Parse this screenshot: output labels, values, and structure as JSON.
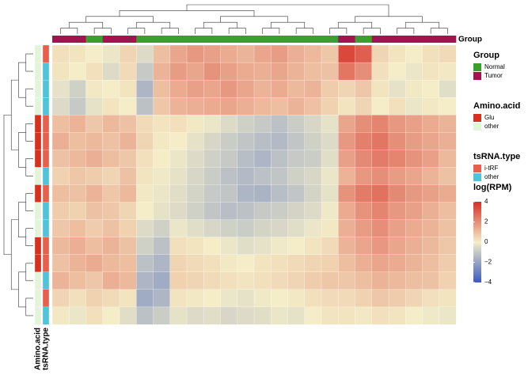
{
  "chart_data": {
    "type": "heatmap",
    "values": [
      [
        0.3,
        0.2,
        0,
        -0.2,
        0.5,
        -0.5,
        1,
        1.5,
        1.8,
        1.6,
        1.4,
        1.2,
        1.5,
        1.7,
        1.3,
        1.1,
        0.8,
        3.5,
        3,
        0.5,
        0.2,
        0,
        0.3,
        0.4
      ],
      [
        0.2,
        0,
        0.3,
        -0.5,
        0.4,
        -1,
        1.2,
        1.7,
        1.5,
        1.9,
        1.6,
        1.4,
        1.3,
        1.5,
        1.2,
        1,
        0.9,
        2.5,
        2,
        0.3,
        0,
        -0.2,
        0.2,
        0.1
      ],
      [
        -0.3,
        -0.8,
        0.1,
        0,
        0.2,
        -1.5,
        1,
        1.4,
        1.6,
        1.5,
        1.8,
        1.5,
        1.2,
        1.4,
        1.1,
        1.2,
        0.7,
        0.5,
        0.8,
        0.2,
        -0.3,
        0.1,
        0,
        -0.4
      ],
      [
        -0.5,
        -1,
        -0.3,
        0.2,
        0,
        -1.2,
        0.8,
        1.2,
        1.3,
        1.4,
        1.5,
        1.3,
        1.1,
        1,
        1.2,
        0.9,
        0.6,
        0.2,
        0.5,
        0,
        0.3,
        -0.2,
        0.1,
        0
      ],
      [
        1,
        1.2,
        0.8,
        1.1,
        0.9,
        0.4,
        0.2,
        0.3,
        0.1,
        -0.2,
        -0.5,
        -0.8,
        -1,
        -1.2,
        -0.9,
        -0.6,
        -0.3,
        1.5,
        2,
        2.2,
        1.8,
        1.6,
        1.4,
        1.2
      ],
      [
        1.3,
        1,
        1.1,
        0.9,
        1.2,
        0.5,
        0.1,
        0,
        -0.3,
        -0.6,
        -0.9,
        -1.1,
        -1.3,
        -1.4,
        -1.1,
        -0.8,
        -0.5,
        1.8,
        2.3,
        2.5,
        2,
        1.7,
        1.5,
        1.3
      ],
      [
        0.9,
        1.1,
        1.3,
        1,
        0.8,
        0.3,
        0,
        -0.2,
        -0.5,
        -0.8,
        -1,
        -1.3,
        -1.5,
        -1.2,
        -1,
        -0.9,
        -0.4,
        1.6,
        2.1,
        2.4,
        2.2,
        1.9,
        1.6,
        1.1
      ],
      [
        0.6,
        0.8,
        0.7,
        0.5,
        0.9,
        0.2,
        -0.1,
        -0.3,
        -0.6,
        -0.9,
        -1.2,
        -1.4,
        -1.2,
        -1.1,
        -0.8,
        -0.6,
        -0.2,
        1.2,
        1.8,
        2,
        1.7,
        1.5,
        1.2,
        0.9
      ],
      [
        1,
        0.9,
        1.2,
        0.8,
        1.1,
        0.1,
        -0.2,
        -0.4,
        -0.7,
        -1,
        -1.1,
        -1.5,
        -1.6,
        -1.3,
        -1.1,
        -0.7,
        -0.3,
        1.9,
        2.4,
        2.6,
        2.1,
        1.8,
        1.6,
        1.4
      ],
      [
        0.7,
        0.6,
        0.9,
        0.8,
        0.5,
        0,
        -0.3,
        -0.5,
        -0.8,
        -1.1,
        -1.3,
        -1.2,
        -1,
        -0.9,
        -0.7,
        -0.5,
        -0.1,
        1.4,
        1.9,
        2.2,
        1.8,
        1.6,
        1.3,
        1
      ],
      [
        0.8,
        1,
        0.7,
        0.9,
        0.6,
        -0.5,
        -0.8,
        -0.2,
        -0.4,
        -0.6,
        -0.8,
        -0.9,
        -0.7,
        -0.6,
        -0.4,
        -0.2,
        0.1,
        1.3,
        1.7,
        2,
        1.6,
        1.4,
        1.2,
        0.9
      ],
      [
        1.1,
        1.3,
        1,
        1.2,
        0.9,
        -0.8,
        -1.2,
        0.3,
        0.2,
        0,
        -0.2,
        -0.4,
        -0.3,
        -0.1,
        0,
        0.2,
        0.4,
        1.2,
        1.5,
        1.8,
        1.5,
        1.3,
        1.1,
        0.8
      ],
      [
        0.9,
        1.2,
        1.4,
        1.1,
        1,
        -1.2,
        -1.5,
        0.5,
        0.4,
        0.3,
        0.1,
        0,
        0.2,
        0.3,
        0.4,
        0.5,
        0.6,
        1,
        1.3,
        1.5,
        1.4,
        1.2,
        1,
        0.7
      ],
      [
        1.2,
        1,
        0.8,
        1.3,
        1.1,
        -1.5,
        -1.8,
        0.6,
        0.5,
        0.4,
        0.3,
        0.2,
        0.3,
        0.4,
        0.5,
        0.7,
        0.8,
        0.8,
        1,
        1.2,
        1.1,
        1,
        0.9,
        0.6
      ],
      [
        0.5,
        0.3,
        0.6,
        0.4,
        0.2,
        -1.8,
        -1.5,
        0.2,
        0.1,
        0,
        -0.2,
        -0.3,
        -0.1,
        0,
        0.1,
        0.3,
        0.4,
        0.4,
        0.6,
        0.8,
        0.7,
        0.5,
        0.3,
        0.2
      ],
      [
        0.1,
        -0.2,
        0.3,
        0,
        -0.4,
        -1.2,
        -0.9,
        -0.3,
        -0.5,
        -0.4,
        -0.6,
        -0.5,
        -0.4,
        -0.2,
        -0.3,
        0,
        0.2,
        0.2,
        0.1,
        0.3,
        0.2,
        0,
        -0.1,
        -0.2
      ]
    ],
    "column_annotation": {
      "name": "Group",
      "values": [
        "Tumor",
        "Tumor",
        "Normal",
        "Tumor",
        "Tumor",
        "Normal",
        "Normal",
        "Normal",
        "Normal",
        "Normal",
        "Normal",
        "Normal",
        "Normal",
        "Normal",
        "Normal",
        "Normal",
        "Normal",
        "Tumor",
        "Normal",
        "Tumor",
        "Tumor",
        "Tumor",
        "Tumor",
        "Tumor"
      ]
    },
    "row_annotations": [
      {
        "name": "Amino.acid",
        "values": [
          "other",
          "other",
          "other",
          "other",
          "Glu",
          "Glu",
          "Glu",
          "other",
          "Glu",
          "other",
          "other",
          "Glu",
          "Glu",
          "other",
          "other",
          "other"
        ]
      },
      {
        "name": "tsRNA.type",
        "values": [
          "i-tRF",
          "other",
          "other",
          "other",
          "i-tRF",
          "i-tRF",
          "i-tRF",
          "other",
          "i-tRF",
          "other",
          "other",
          "i-tRF",
          "i-tRF",
          "other",
          "i-tRF",
          "other"
        ]
      }
    ],
    "legends": [
      {
        "title": "Group",
        "items": [
          {
            "label": "Normal",
            "color": "#3aa02c"
          },
          {
            "label": "Tumor",
            "color": "#a3144f"
          }
        ]
      },
      {
        "title": "Amino.acid",
        "items": [
          {
            "label": "Glu",
            "color": "#d7301f"
          },
          {
            "label": "other",
            "color": "#e3f4dc"
          }
        ]
      },
      {
        "title": "tsRNA.type",
        "items": [
          {
            "label": "i-tRF",
            "color": "#e8604c"
          },
          {
            "label": "other",
            "color": "#4fc3da"
          }
        ]
      }
    ],
    "colorbar": {
      "title": "log(RPM)",
      "lim": [
        -4,
        4
      ],
      "ticks": [
        4,
        2,
        0,
        {
          "value": -2,
          "label": "−2"
        },
        {
          "value": -4,
          "label": "−4"
        }
      ],
      "colors": [
        "#3a5bbf",
        "#f4edc8",
        "#d62f27"
      ]
    }
  }
}
